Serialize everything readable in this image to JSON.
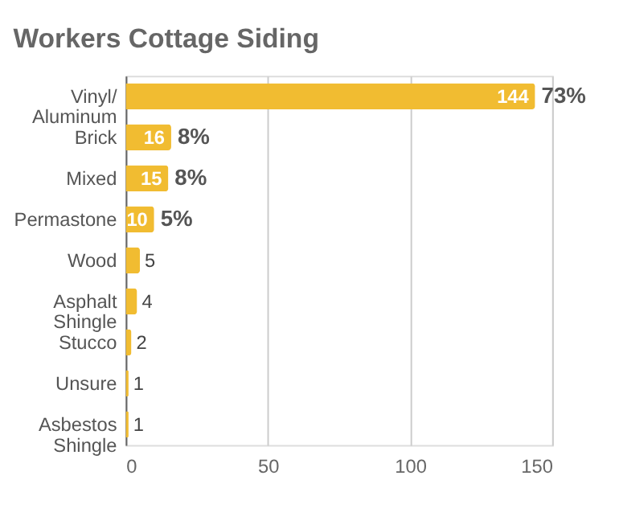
{
  "chart_data": {
    "type": "bar",
    "orientation": "horizontal",
    "title": "Workers Cottage Siding",
    "categories": [
      "Vinyl/ Aluminum",
      "Brick",
      "Mixed",
      "Permastone",
      "Wood",
      "Asphalt Shingle",
      "Stucco",
      "Unsure",
      "Asbestos Shingle"
    ],
    "values": [
      144,
      16,
      15,
      10,
      5,
      4,
      2,
      1,
      1
    ],
    "color": "#f1bc31",
    "xlim": [
      0,
      150
    ],
    "xticks": [
      0,
      50,
      100,
      150
    ],
    "grid": "x",
    "data_labels": true,
    "annotations": [
      {
        "text": "73%",
        "x": 144,
        "y": "Vinyl/ Aluminum"
      },
      {
        "text": "8%",
        "x": 16,
        "y": "Brick"
      },
      {
        "text": "8%",
        "x": 15,
        "y": "Mixed"
      },
      {
        "text": "5%",
        "x": 10,
        "y": "Permastone"
      }
    ]
  }
}
